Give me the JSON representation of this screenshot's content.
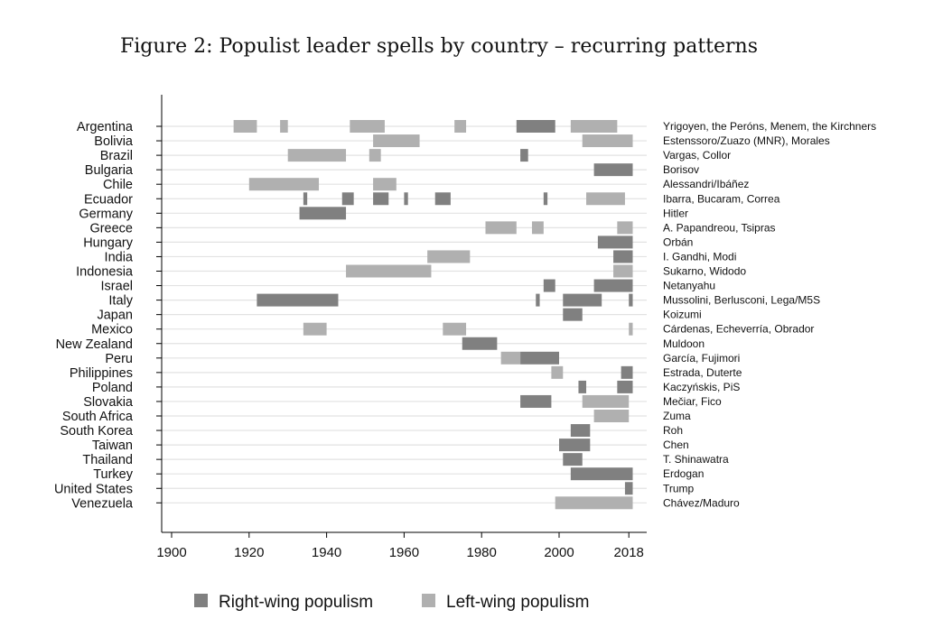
{
  "chart_data": {
    "type": "timeline",
    "title": "Figure 2:  Populist leader spells by country – recurring patterns",
    "xticks": [
      1900,
      1920,
      1940,
      1960,
      1980,
      2000,
      2018
    ],
    "xlim": [
      1897,
      2020
    ],
    "colors": {
      "right": "#808080",
      "left": "#b0b0b0",
      "grid": "#e2e2e2",
      "axis": "#000000"
    },
    "legend": [
      {
        "name": "Right-wing populism",
        "type": "right"
      },
      {
        "name": "Left-wing populism",
        "type": "left"
      }
    ],
    "countries": [
      {
        "name": "Argentina",
        "leaders": "Yrigoyen, the Peróns, Menem, the Kirchners",
        "spells": [
          [
            1916,
            1922,
            "left"
          ],
          [
            1928,
            1930,
            "left"
          ],
          [
            1946,
            1955,
            "left"
          ],
          [
            1973,
            1976,
            "left"
          ],
          [
            1989,
            1999,
            "right"
          ],
          [
            2003,
            2015,
            "left"
          ]
        ]
      },
      {
        "name": "Bolivia",
        "leaders": "Estenssoro/Zuazo (MNR), Morales",
        "spells": [
          [
            1952,
            1964,
            "left"
          ],
          [
            2006,
            2019,
            "left"
          ]
        ]
      },
      {
        "name": "Brazil",
        "leaders": "Vargas, Collor",
        "spells": [
          [
            1930,
            1945,
            "left"
          ],
          [
            1951,
            1954,
            "left"
          ],
          [
            1990,
            1992,
            "right"
          ]
        ]
      },
      {
        "name": "Bulgaria",
        "leaders": "Borisov",
        "spells": [
          [
            2009,
            2019,
            "right"
          ]
        ]
      },
      {
        "name": "Chile",
        "leaders": "Alessandri/Ibáñez",
        "spells": [
          [
            1920,
            1938,
            "left"
          ],
          [
            1952,
            1958,
            "left"
          ]
        ]
      },
      {
        "name": "Ecuador",
        "leaders": "Ibarra, Bucaram, Correa",
        "spells": [
          [
            1934,
            1935,
            "right"
          ],
          [
            1944,
            1947,
            "right"
          ],
          [
            1952,
            1956,
            "right"
          ],
          [
            1960,
            1961,
            "right"
          ],
          [
            1968,
            1972,
            "right"
          ],
          [
            1996,
            1997,
            "right"
          ],
          [
            2007,
            2017,
            "left"
          ]
        ]
      },
      {
        "name": "Germany",
        "leaders": "Hitler",
        "spells": [
          [
            1933,
            1945,
            "right"
          ]
        ]
      },
      {
        "name": "Greece",
        "leaders": "A. Papandreou, Tsipras",
        "spells": [
          [
            1981,
            1989,
            "left"
          ],
          [
            1993,
            1996,
            "left"
          ],
          [
            2015,
            2019,
            "left"
          ]
        ]
      },
      {
        "name": "Hungary",
        "leaders": "Orbán",
        "spells": [
          [
            2010,
            2019,
            "right"
          ]
        ]
      },
      {
        "name": "India",
        "leaders": "I. Gandhi, Modi",
        "spells": [
          [
            1966,
            1977,
            "left"
          ],
          [
            2014,
            2019,
            "right"
          ]
        ]
      },
      {
        "name": "Indonesia",
        "leaders": "Sukarno, Widodo",
        "spells": [
          [
            1945,
            1967,
            "left"
          ],
          [
            2014,
            2019,
            "left"
          ]
        ]
      },
      {
        "name": "Israel",
        "leaders": "Netanyahu",
        "spells": [
          [
            1996,
            1999,
            "right"
          ],
          [
            2009,
            2019,
            "right"
          ]
        ]
      },
      {
        "name": "Italy",
        "leaders": "Mussolini, Berlusconi, Lega/M5S",
        "spells": [
          [
            1922,
            1943,
            "right"
          ],
          [
            1994,
            1995,
            "right"
          ],
          [
            2001,
            2011,
            "right"
          ],
          [
            2018,
            2019,
            "right"
          ]
        ]
      },
      {
        "name": "Japan",
        "leaders": "Koizumi",
        "spells": [
          [
            2001,
            2006,
            "right"
          ]
        ]
      },
      {
        "name": "Mexico",
        "leaders": "Cárdenas, Echeverría, Obrador",
        "spells": [
          [
            1934,
            1940,
            "left"
          ],
          [
            1970,
            1976,
            "left"
          ],
          [
            2018,
            2019,
            "left"
          ]
        ]
      },
      {
        "name": "New Zealand",
        "leaders": "Muldoon",
        "spells": [
          [
            1975,
            1984,
            "right"
          ]
        ]
      },
      {
        "name": "Peru",
        "leaders": "García, Fujimori",
        "spells": [
          [
            1985,
            1990,
            "left"
          ],
          [
            1990,
            2000,
            "right"
          ]
        ]
      },
      {
        "name": "Philippines",
        "leaders": "Estrada, Duterte",
        "spells": [
          [
            1998,
            2001,
            "left"
          ],
          [
            2016,
            2019,
            "right"
          ]
        ]
      },
      {
        "name": "Poland",
        "leaders": "Kaczyńskis, PiS",
        "spells": [
          [
            2005,
            2007,
            "right"
          ],
          [
            2015,
            2019,
            "right"
          ]
        ]
      },
      {
        "name": "Slovakia",
        "leaders": "Mečiar, Fico",
        "spells": [
          [
            1990,
            1998,
            "right"
          ],
          [
            2006,
            2018,
            "left"
          ]
        ]
      },
      {
        "name": "South Africa",
        "leaders": "Zuma",
        "spells": [
          [
            2009,
            2018,
            "left"
          ]
        ]
      },
      {
        "name": "South Korea",
        "leaders": "Roh",
        "spells": [
          [
            2003,
            2008,
            "right"
          ]
        ]
      },
      {
        "name": "Taiwan",
        "leaders": "Chen",
        "spells": [
          [
            2000,
            2008,
            "right"
          ]
        ]
      },
      {
        "name": "Thailand",
        "leaders": "T. Shinawatra",
        "spells": [
          [
            2001,
            2006,
            "right"
          ]
        ]
      },
      {
        "name": "Turkey",
        "leaders": "Erdogan",
        "spells": [
          [
            2003,
            2019,
            "right"
          ]
        ]
      },
      {
        "name": "United States",
        "leaders": "Trump",
        "spells": [
          [
            2017,
            2019,
            "right"
          ]
        ]
      },
      {
        "name": "Venezuela",
        "leaders": "Chávez/Maduro",
        "spells": [
          [
            1999,
            2019,
            "left"
          ]
        ]
      }
    ]
  }
}
